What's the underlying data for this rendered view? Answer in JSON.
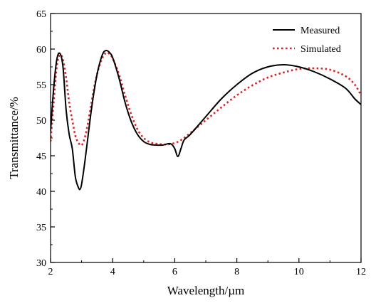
{
  "chart_data": {
    "type": "line",
    "title": "",
    "xlabel": "Wavelength/µm",
    "ylabel": "Transmittance/%",
    "xlim": [
      2,
      12
    ],
    "ylim": [
      30,
      65
    ],
    "xticks": [
      2,
      4,
      6,
      8,
      10,
      12
    ],
    "yticks": [
      30,
      35,
      40,
      45,
      50,
      55,
      60,
      65
    ],
    "grid": false,
    "legend": "top-right",
    "series": [
      {
        "name": "Measured",
        "color": "#000000",
        "style": "solid",
        "x": [
          2.0,
          2.1,
          2.2,
          2.3,
          2.4,
          2.5,
          2.6,
          2.7,
          2.8,
          2.9,
          2.95,
          3.0,
          3.1,
          3.2,
          3.3,
          3.4,
          3.5,
          3.6,
          3.7,
          3.8,
          3.9,
          4.0,
          4.2,
          4.4,
          4.6,
          4.8,
          5.0,
          5.2,
          5.4,
          5.6,
          5.8,
          5.9,
          6.0,
          6.1,
          6.2,
          6.3,
          6.5,
          7.0,
          7.5,
          8.0,
          8.5,
          9.0,
          9.5,
          10.0,
          10.5,
          11.0,
          11.5,
          11.8,
          12.0
        ],
        "y": [
          48.5,
          54.5,
          58.5,
          59.4,
          57.5,
          51.5,
          48.0,
          46.0,
          42.0,
          40.5,
          40.3,
          41.0,
          44.0,
          47.5,
          51.0,
          54.0,
          56.5,
          58.3,
          59.5,
          59.8,
          59.5,
          58.8,
          56.0,
          52.5,
          49.8,
          48.0,
          47.0,
          46.6,
          46.5,
          46.5,
          46.7,
          46.6,
          46.0,
          44.9,
          46.0,
          47.2,
          48.0,
          50.5,
          53.0,
          55.0,
          56.6,
          57.5,
          57.8,
          57.5,
          56.8,
          55.8,
          54.5,
          53.0,
          52.2
        ]
      },
      {
        "name": "Simulated",
        "color": "#d62728",
        "style": "dotted",
        "x": [
          2.0,
          2.1,
          2.2,
          2.3,
          2.4,
          2.5,
          2.6,
          2.7,
          2.8,
          2.9,
          3.0,
          3.1,
          3.2,
          3.3,
          3.4,
          3.5,
          3.6,
          3.7,
          3.8,
          3.9,
          4.0,
          4.2,
          4.4,
          4.6,
          4.8,
          5.0,
          5.2,
          5.4,
          5.6,
          5.8,
          6.0,
          6.2,
          6.5,
          7.0,
          7.5,
          8.0,
          8.5,
          9.0,
          9.5,
          10.0,
          10.5,
          11.0,
          11.5,
          11.8,
          12.0
        ],
        "y": [
          47.0,
          52.5,
          57.5,
          59.2,
          58.5,
          56.0,
          52.5,
          50.0,
          47.8,
          46.8,
          46.5,
          47.5,
          49.5,
          52.0,
          54.5,
          56.5,
          58.0,
          59.0,
          59.5,
          59.3,
          58.7,
          56.5,
          53.5,
          50.8,
          48.7,
          47.5,
          46.9,
          46.7,
          46.6,
          46.6,
          46.8,
          47.2,
          48.2,
          50.0,
          51.8,
          53.5,
          54.9,
          56.0,
          56.7,
          57.2,
          57.3,
          57.1,
          56.2,
          55.0,
          53.5
        ]
      }
    ]
  }
}
